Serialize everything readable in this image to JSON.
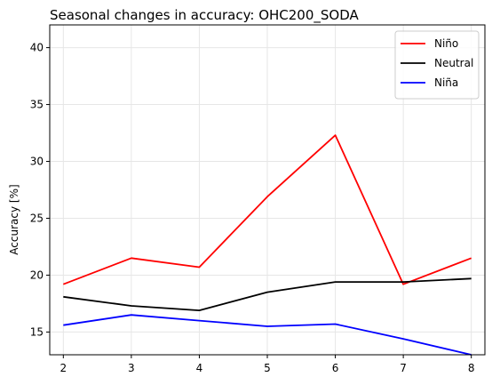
{
  "chart_data": {
    "type": "line",
    "title": "Seasonal changes in accuracy: OHC200_SODA",
    "xlabel": "",
    "ylabel": "Accuracy [%]",
    "x": [
      2,
      3,
      4,
      5,
      6,
      7,
      8
    ],
    "xlim": [
      1.8,
      8.2
    ],
    "ylim": [
      13.0,
      42.0
    ],
    "xticks": [
      2,
      3,
      4,
      5,
      6,
      7,
      8
    ],
    "yticks": [
      15,
      20,
      25,
      30,
      35,
      40
    ],
    "grid": true,
    "legend_position": "top-right",
    "series": [
      {
        "name": "Niño",
        "color": "#ff0000",
        "values": [
          19.2,
          21.5,
          20.7,
          26.9,
          32.3,
          19.2,
          21.5
        ]
      },
      {
        "name": "Neutral",
        "color": "#000000",
        "values": [
          18.1,
          17.3,
          16.9,
          18.5,
          19.4,
          19.4,
          19.7
        ]
      },
      {
        "name": "Niña",
        "color": "#0000ff",
        "values": [
          15.6,
          16.5,
          16.0,
          15.5,
          15.7,
          14.4,
          13.0
        ]
      }
    ]
  }
}
